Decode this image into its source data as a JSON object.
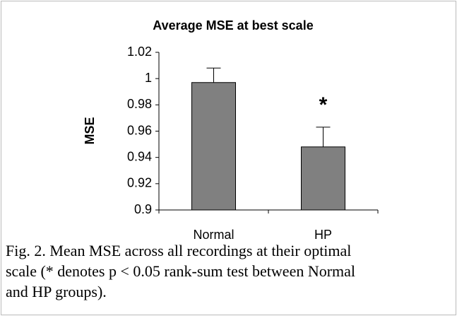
{
  "chart_data": {
    "type": "bar",
    "title": "Average MSE at best scale",
    "ylabel": "MSE",
    "categories": [
      "Normal",
      "HP"
    ],
    "values": [
      0.997,
      0.948
    ],
    "errors": [
      0.011,
      0.015
    ],
    "color": "#808080",
    "ylim": [
      0.9,
      1.02
    ],
    "yticks": [
      0.9,
      0.92,
      0.94,
      0.96,
      0.98,
      1,
      1.02
    ],
    "grid": false,
    "annotation": "*",
    "caption_lines": [
      "Fig. 2. Mean MSE across all recordings at their optimal",
      "scale (* denotes p < 0.05 rank-sum test between Normal",
      "and HP groups)."
    ]
  }
}
